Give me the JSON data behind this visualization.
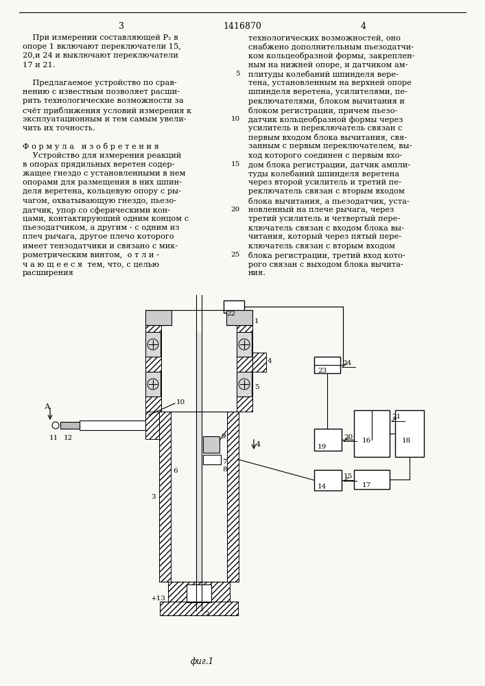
{
  "background_color": "#f8f8f4",
  "header_number": "1416870",
  "col_left_header": "3",
  "col_right_header": "4",
  "left_text_lines": [
    "    При измерении составляющей P₂ в",
    "опоре 1 включают переключатели 15,",
    "20,и 24 и выключают переключатели",
    "17 и 21.",
    "",
    "    Предлагаемое устройство по срав-",
    "нению с известным позволяет расши-",
    "рить технологические возможности за",
    "счёт приближения условий измерения к",
    "эксплуатационным и тем самым увели-",
    "чить их точность.",
    "",
    "Ф о р м у л а   и з о б р е т е н и я",
    "    Устройство для измерения реакций",
    "в опорах прядильных веретен содер-",
    "жащее гнездо с установленными в нем",
    "опорами для размещения в них шпин-",
    "деля веретена, кольцевую опору с ры-",
    "чагом, охватывающую гнездо, пьезо-",
    "датчик, упор со сферическими кон-",
    "цами, контактирующий одним концом с",
    "пьезодатчиком, а другим - с одним из",
    "плеч рычага, другое плечо которого",
    "имеет тензодатчики и связано с мик-",
    "рометрическим винтом,  о т л и -",
    "ч а ю щ е е с я  тем, что, с целью",
    "расширения"
  ],
  "right_text_lines": [
    "технологических возможностей, оно",
    "снабжено дополнительным пьезодатчи-",
    "ком кольцеобразной формы, закреплен-",
    "ным на нижней опоре, и датчиком ам-",
    "плитуды колебаний шпинделя вере-",
    "тена, установленным на верхней опоре",
    "шпинделя веретена, усилителями, пе-",
    "реключателями, блоком вычитания и",
    "блоком регистрации, причем пьезо-",
    "датчик кольцеобразной формы через",
    "усилитель и переключатель связан с",
    "первым входом блока вычитания, свя-",
    "занным с первым переключателем, вы-",
    "ход которого соединен с первым вхо-",
    "дом блока регистрации, датчик ампли-",
    "туды колебаний шпинделя веретена",
    "через второй усилитель и третий пе-",
    "реключатель связан с вторым входом",
    "блока вычитания, а пьезодатчик, уста-",
    "новленный на плече рычага, через",
    "третий усилитель и четвертый пере-",
    "ключатель связан с входом блока вы-",
    "читания, который через пятый пере-",
    "ключатель связан с вторым входом",
    "блока регистрации, третий вход кото-",
    "рого связан с выходом блока вычита-",
    "ния."
  ],
  "line_numbers_positions": [
    5,
    10,
    15,
    20,
    25
  ],
  "fig_label": "фиг.1"
}
